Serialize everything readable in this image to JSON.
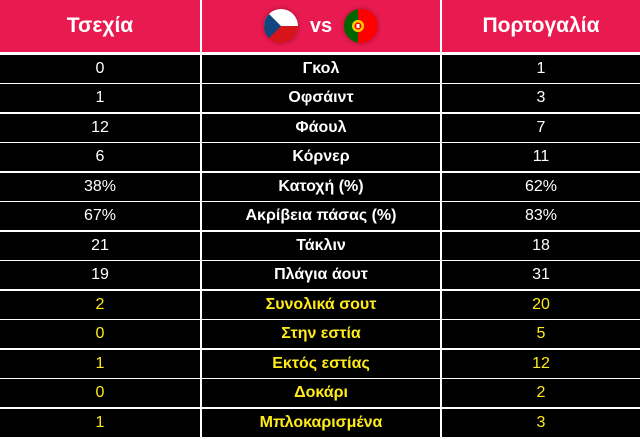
{
  "header": {
    "home_team": "Τσεχία",
    "vs_label": "vs",
    "away_team": "Πορτογαλία",
    "home_flag_icon": "czech-flag-icon",
    "away_flag_icon": "portugal-flag-icon",
    "header_color": "#e81a4f"
  },
  "stats": [
    {
      "label": "Γκολ",
      "home": "0",
      "away": "1",
      "highlight": false
    },
    {
      "label": "Οφσάιντ",
      "home": "1",
      "away": "3",
      "highlight": false
    },
    {
      "label": "Φάουλ",
      "home": "12",
      "away": "7",
      "highlight": false
    },
    {
      "label": "Κόρνερ",
      "home": "6",
      "away": "11",
      "highlight": false
    },
    {
      "label": "Κατοχή (%)",
      "home": "38%",
      "away": "62%",
      "highlight": false
    },
    {
      "label": "Ακρίβεια πάσας (%)",
      "home": "67%",
      "away": "83%",
      "highlight": false
    },
    {
      "label": "Τάκλιν",
      "home": "21",
      "away": "18",
      "highlight": false
    },
    {
      "label": "Πλάγια άουτ",
      "home": "19",
      "away": "31",
      "highlight": false
    },
    {
      "label": "Συνολικά σουτ",
      "home": "2",
      "away": "20",
      "highlight": true
    },
    {
      "label": "Στην εστία",
      "home": "0",
      "away": "5",
      "highlight": true
    },
    {
      "label": "Εκτός εστίας",
      "home": "1",
      "away": "12",
      "highlight": true
    },
    {
      "label": "Δοκάρι",
      "home": "0",
      "away": "2",
      "highlight": true
    },
    {
      "label": "Μπλοκαρισμένα",
      "home": "1",
      "away": "3",
      "highlight": true
    }
  ],
  "colors": {
    "row_background": "#000000",
    "text_default": "#ffffff",
    "text_highlight": "#ffeb1a"
  }
}
